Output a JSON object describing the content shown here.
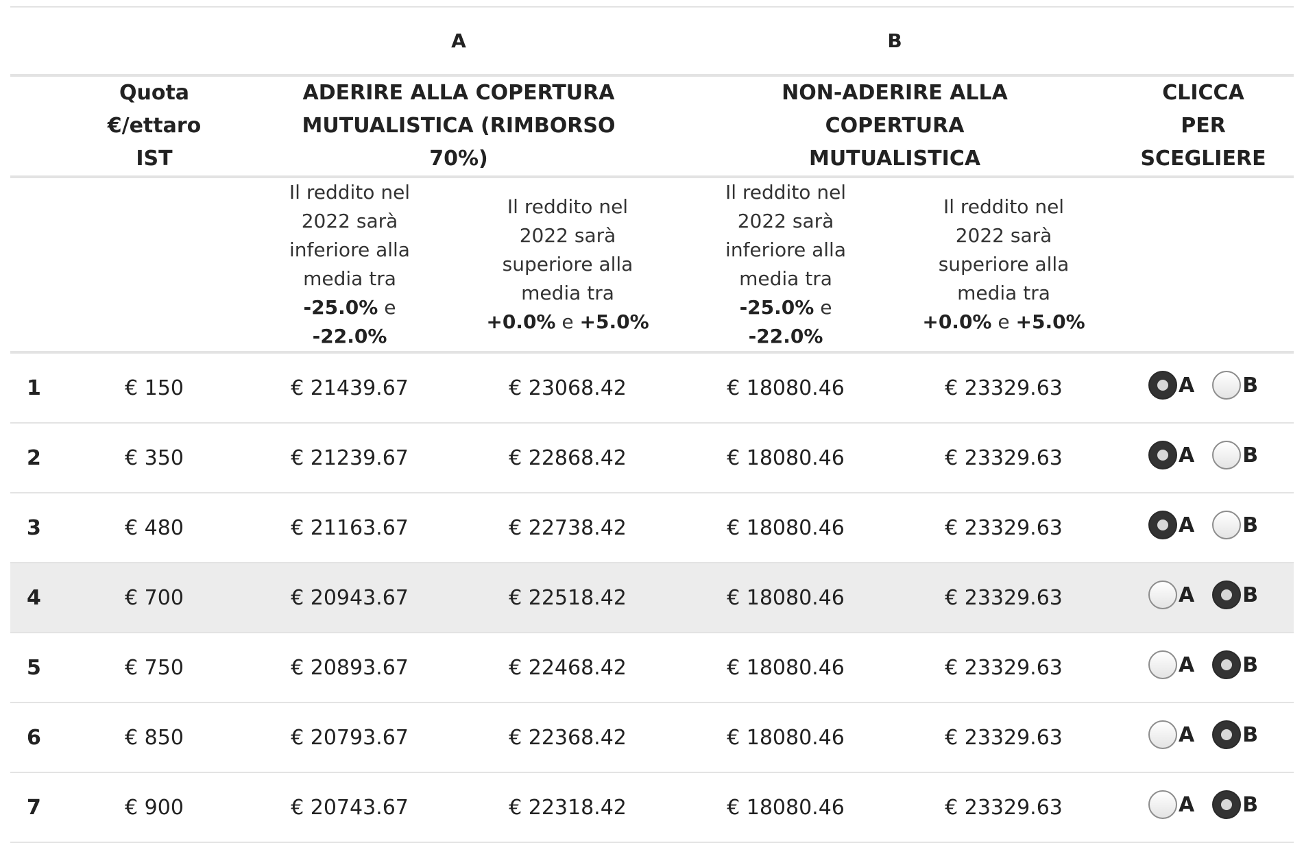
{
  "group_headers": {
    "a": "A",
    "b": "B"
  },
  "headers": {
    "quota": "Quota €/ettaro IST",
    "aderire": "ADERIRE ALLA COPERTURA MUTUALISTICA (RIMBORSO 70%)",
    "non_aderire": "NON-ADERIRE ALLA COPERTURA MUTUALISTICA",
    "clicca": "CLICCA PER SCEGLIERE"
  },
  "scenarios": {
    "low": {
      "text": "Il reddito nel 2022 sarà inferiore alla media tra",
      "from": "-25.0%",
      "conj": "e",
      "to": "-22.0%"
    },
    "high": {
      "text": "Il reddito nel 2022 sarà superiore alla media tra",
      "from": "+0.0%",
      "conj": "e",
      "to": "+5.0%"
    }
  },
  "option_labels": {
    "a": "A",
    "b": "B"
  },
  "rows": [
    {
      "index": "1",
      "quota": "€ 150",
      "a_low": "€ 21439.67",
      "a_high": "€ 23068.42",
      "b_low": "€ 18080.46",
      "b_high": "€ 23329.63",
      "selected": "A"
    },
    {
      "index": "2",
      "quota": "€ 350",
      "a_low": "€ 21239.67",
      "a_high": "€ 22868.42",
      "b_low": "€ 18080.46",
      "b_high": "€ 23329.63",
      "selected": "A"
    },
    {
      "index": "3",
      "quota": "€ 480",
      "a_low": "€ 21163.67",
      "a_high": "€ 22738.42",
      "b_low": "€ 18080.46",
      "b_high": "€ 23329.63",
      "selected": "A"
    },
    {
      "index": "4",
      "quota": "€ 700",
      "a_low": "€ 20943.67",
      "a_high": "€ 22518.42",
      "b_low": "€ 18080.46",
      "b_high": "€ 23329.63",
      "selected": "B",
      "highlighted": true
    },
    {
      "index": "5",
      "quota": "€ 750",
      "a_low": "€ 20893.67",
      "a_high": "€ 22468.42",
      "b_low": "€ 18080.46",
      "b_high": "€ 23329.63",
      "selected": "B"
    },
    {
      "index": "6",
      "quota": "€ 850",
      "a_low": "€ 20793.67",
      "a_high": "€ 22368.42",
      "b_low": "€ 18080.46",
      "b_high": "€ 23329.63",
      "selected": "B"
    },
    {
      "index": "7",
      "quota": "€ 900",
      "a_low": "€ 20743.67",
      "a_high": "€ 22318.42",
      "b_low": "€ 18080.46",
      "b_high": "€ 23329.63",
      "selected": "B"
    }
  ]
}
